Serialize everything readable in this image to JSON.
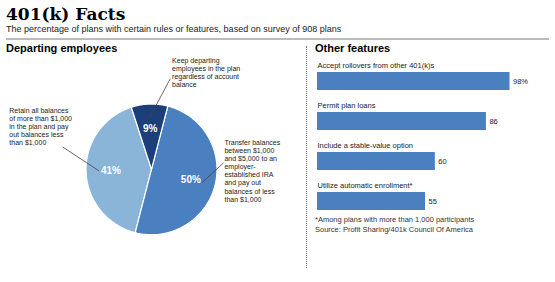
{
  "title": "401(k) Facts",
  "subtitle": "The percentage of plans with certain rules or features, based on survey of 908 plans",
  "chart_data": [
    {
      "type": "pie",
      "title": "Departing employees",
      "values": [
        41,
        50,
        9
      ],
      "value_labels": [
        "41%",
        "50%",
        "9%"
      ],
      "colors": [
        "#8ab4d8",
        "#4a7fc0",
        "#1c3f7a"
      ],
      "data_labels": true,
      "annotations": [
        "Retain all balances\nof more than $1,000\nin the plan and pay\nout balances less\nthan $1,000",
        "Transfer balances\nbetween $1,000\nand $5,000 to an\nemployer-\nestablished IRA\nand pay out\nbalances of less\nthan $1,000",
        "Keep departing\nemployees in the plan\nregardless of account\nbalance"
      ]
    },
    {
      "type": "bar",
      "title": "Other features",
      "orientation": "horizontal",
      "categories": [
        "Accept rollovers from other 401(k)s",
        "Permit plan loans",
        "Include a stable-value option",
        "Utilize automatic enrollment*"
      ],
      "values": [
        98,
        86,
        60,
        55
      ],
      "value_labels": [
        "98%",
        "86",
        "60",
        "55"
      ],
      "color": "#4a7fc0",
      "xlim": [
        0,
        112
      ],
      "data_labels": true,
      "tick_labels": "y",
      "annotations": [
        "*Among plans with more than 1,000 participants",
        "Source: Profit Sharing/401k Council Of America"
      ]
    }
  ]
}
